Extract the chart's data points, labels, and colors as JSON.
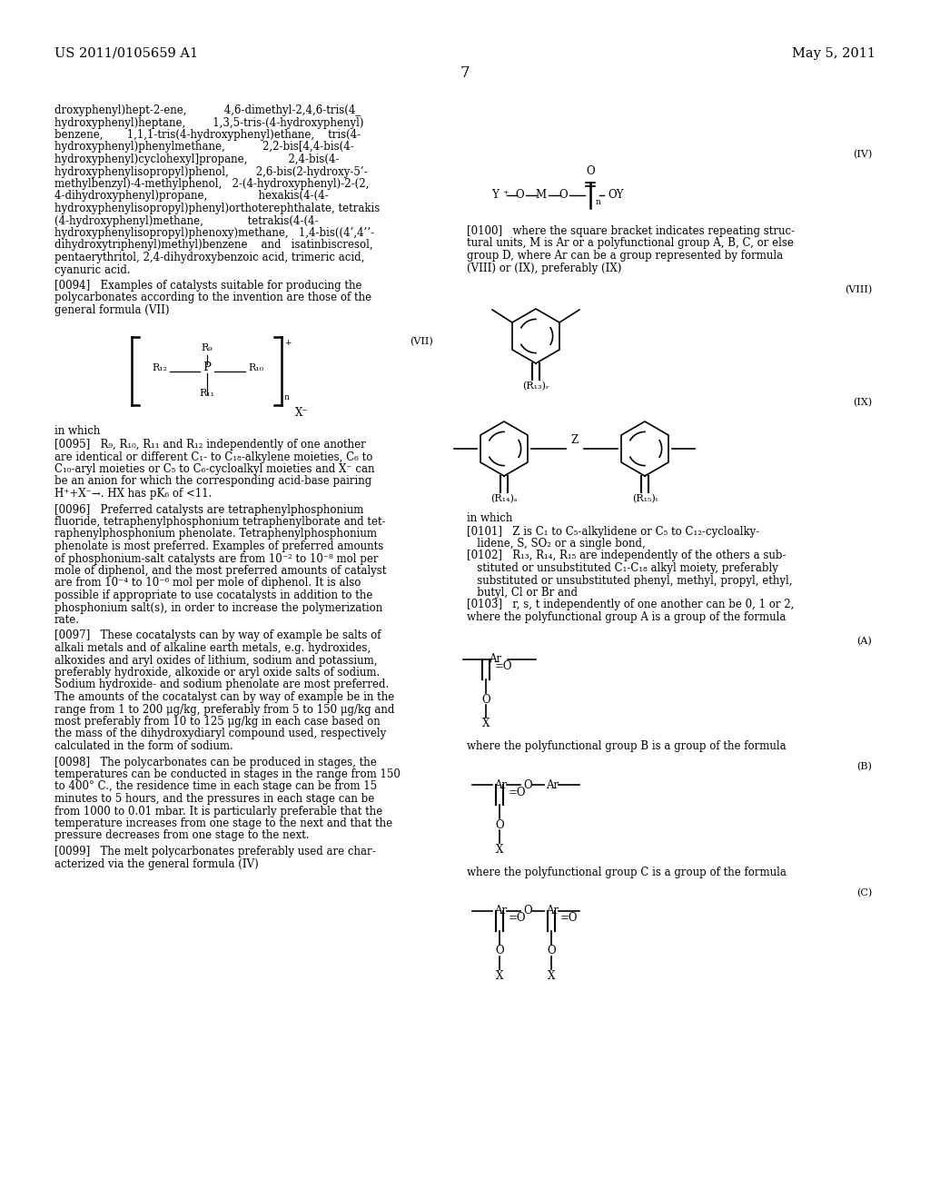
{
  "bg": "#ffffff",
  "header_left": "US 2011/0105659 A1",
  "header_right": "May 5, 2011",
  "page_number": "7",
  "body_lines": [
    "droxyphenyl)hept-2-ene,           4,6-dimethyl-2,4,6-tris(4_",
    "hydroxyphenyl)heptane,        1,3,5-tris-(4-hydroxyphenyl)",
    "benzene,       1,1,1-tris(4-hydroxyphenyl)ethane,    tris(4-",
    "hydroxyphenyl)phenylmethane,           2,2-bis[4,4-bis(4-",
    "hydroxyphenyl)cyclohexyl]propane,            2,4-bis(4-",
    "hydroxyphenylisopropyl)phenol,        2,6-bis(2-hydroxy-5’-",
    "methylbenzyl)-4-methylphenol,   2-(4-hydroxyphenyl)-2-(2,",
    "4-dihydroxyphenyl)propane,               hexakis(4-(4-",
    "hydroxyphenylisopropyl)phenyl)orthoterephthalate, tetrakis",
    "(4-hydroxyphenyl)methane,             tetrakis(4-(4-",
    "hydroxyphenylisopropyl)phenoxy)methane,   1,4-bis((4’,4’’-",
    "dihydroxytriphenyl)methyl)benzene    and   isatinbiscresol,",
    "pentaerythritol, 2,4-dihydroxybenzoic acid, trimeric acid,",
    "cyanuric acid."
  ],
  "p0094": "[0094]   Examples of catalysts suitable for producing the\npolycarbonates according to the invention are those of the\ngeneral formula (VII)",
  "p0095": "[0095]   R₉, R₁₀, R₁₁ and R₁₂ independently of one another\nare identical or different C₁- to C₁₈-alkylene moieties, C₆ to\nC₁₀-aryl moieties or C₅ to C₆-cycloalkyl moieties and X⁻ can\nbe an anion for which the corresponding acid-base pairing\nH⁺+X⁻→. HX has pK₆ of <11.",
  "p0096": "[0096]   Preferred catalysts are tetraphenylphosphonium\nfluoride, tetraphenylphosphonium tetraphenylborate and tet-\nraphenylphosphonium phenolate. Tetraphenylphosphonium\nphenolate is most preferred. Examples of preferred amounts\nof phosphonium-salt catalysts are from 10⁻² to 10⁻⁸ mol per\nmole of diphenol, and the most preferred amounts of catalyst\nare from 10⁻⁴ to 10⁻⁶ mol per mole of diphenol. It is also\npossible if appropriate to use cocatalysts in addition to the\nphosphonium salt(s), in order to increase the polymerization\nrate.",
  "p0097": "[0097]   These cocatalysts can by way of example be salts of\nalkali metals and of alkaline earth metals, e.g. hydroxides,\nalkoxides and aryl oxides of lithium, sodium and potassium,\npreferably hydroxide, alkoxide or aryl oxide salts of sodium.\nSodium hydroxide- and sodium phenolate are most preferred.\nThe amounts of the cocatalyst can by way of example be in the\nrange from 1 to 200 μg/kg, preferably from 5 to 150 μg/kg and\nmost preferably from 10 to 125 μg/kg in each case based on\nthe mass of the dihydroxydiaryl compound used, respectively\ncalculated in the form of sodium.",
  "p0098": "[0098]   The polycarbonates can be produced in stages, the\ntemperatures can be conducted in stages in the range from 150\nto 400° C., the residence time in each stage can be from 15\nminutes to 5 hours, and the pressures in each stage can be\nfrom 1000 to 0.01 mbar. It is particularly preferable that the\ntemperature increases from one stage to the next and that the\npressure decreases from one stage to the next.",
  "p0099": "[0099]   The melt polycarbonates preferably used are char-\nacterized via the general formula (IV)",
  "p0100": "[0100]   where the square bracket indicates repeating struc-\ntural units, M is Ar or a polyfunctional group A, B, C, or else\ngroup D, where Ar can be a group represented by formula\n(VIII) or (IX), preferably (IX)",
  "p0101": "[0101]   Z is C₁ to C₅-alkylidene or C₅ to C₁₂-cycloalky-\n   lidene, S, SO₂ or a single bond,",
  "p0102": "[0102]   R₁₃, R₁₄, R₁₅ are independently of the others a sub-\n   stituted or unsubstituted C₁-C₁₈ alkyl moiety, preferably\n   substituted or unsubstituted phenyl, methyl, propyl, ethyl,\n   butyl, Cl or Br and",
  "p0103": "[0103]   r, s, t independently of one another can be 0, 1 or 2,\nwhere the polyfunctional group A is a group of the formula",
  "pB": "where the polyfunctional group B is a group of the formula",
  "pC": "where the polyfunctional group C is a group of the formula"
}
